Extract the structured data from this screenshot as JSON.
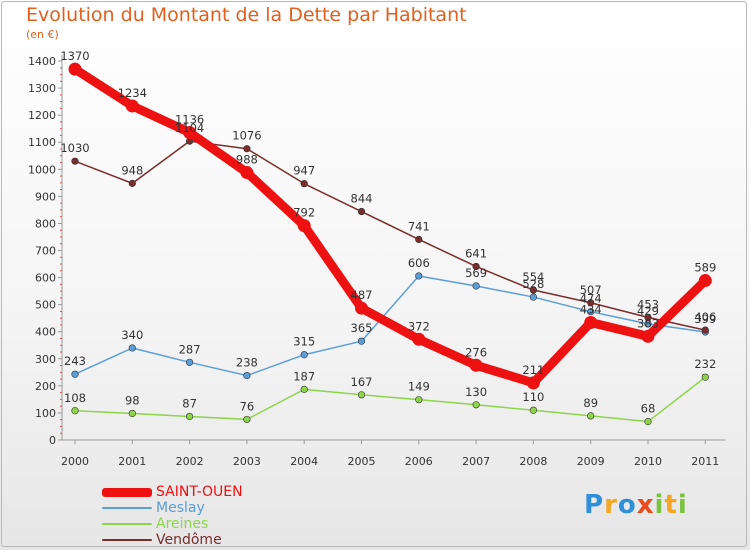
{
  "chart_data": {
    "type": "line",
    "title": "Evolution du Montant de la Dette par Habitant",
    "subtitle": "(en €)",
    "xlabel": "",
    "ylabel": "",
    "x": [
      "2000",
      "2001",
      "2002",
      "2003",
      "2004",
      "2005",
      "2006",
      "2007",
      "2008",
      "2009",
      "2010",
      "2011"
    ],
    "ylim": [
      0,
      1400
    ],
    "yticks": [
      0,
      100,
      200,
      300,
      400,
      500,
      600,
      700,
      800,
      900,
      1000,
      1100,
      1200,
      1300,
      1400
    ],
    "grid": false,
    "legend_position": "bottom-left",
    "series": [
      {
        "name": "SAINT-OUEN",
        "color": "#ee1111",
        "values": [
          1370,
          1234,
          1136,
          988,
          792,
          487,
          372,
          276,
          211,
          434,
          383,
          589
        ],
        "labels": [
          "1370",
          "1234",
          "1136",
          "988",
          "792",
          "487",
          "372",
          "276",
          "211",
          "434",
          "383",
          "589"
        ]
      },
      {
        "name": "Meslay",
        "color": "#5a9ed6",
        "values": [
          243,
          340,
          287,
          238,
          315,
          365,
          606,
          569,
          528,
          474,
          429,
          399
        ],
        "labels": [
          "243",
          "340",
          "287",
          "238",
          "315",
          "365",
          "606",
          "569",
          "528",
          "474",
          "429",
          "399"
        ]
      },
      {
        "name": "Areines",
        "color": "#8dd44a",
        "values": [
          108,
          98,
          87,
          76,
          187,
          167,
          149,
          130,
          110,
          89,
          68,
          232
        ],
        "labels": [
          "108",
          "98",
          "87",
          "76",
          "187",
          "167",
          "149",
          "130",
          "110",
          "89",
          "68",
          "232"
        ]
      },
      {
        "name": "Vendôme",
        "color": "#7a2d2d",
        "values": [
          1030,
          948,
          1104,
          1076,
          947,
          844,
          741,
          641,
          554,
          507,
          453,
          406
        ],
        "labels": [
          "1030",
          "948",
          "1104",
          "1076",
          "947",
          "844",
          "741",
          "641",
          "554",
          "507",
          "453",
          "406"
        ]
      }
    ]
  },
  "logo": {
    "text": [
      "P",
      "r",
      "o",
      "x",
      "i",
      "t",
      "i"
    ],
    "colors": [
      "#2f8fd8",
      "#f5a623",
      "#2f8fd8",
      "#e84b1c",
      "#7cc242",
      "#f5a623",
      "#7cc242"
    ]
  }
}
